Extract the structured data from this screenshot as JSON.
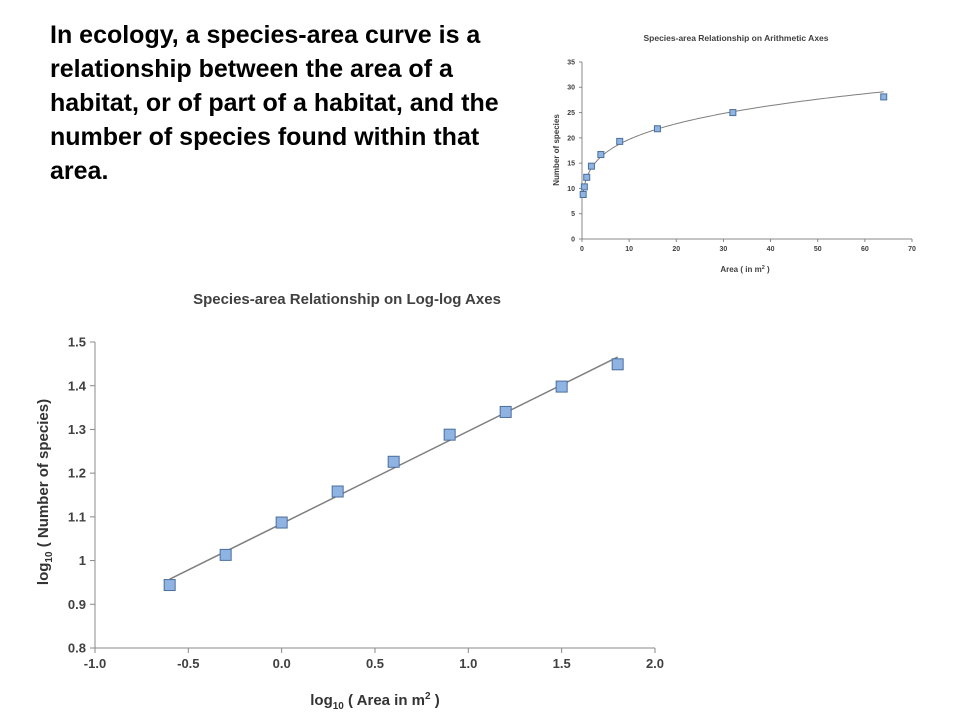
{
  "intro": {
    "text": "In ecology, a species-area curve is a relationship between the area of a habitat, or of part of a habitat, and the number of species found within that area."
  },
  "chart_data": [
    {
      "type": "scatter",
      "title": "Species-area Relationship on Arithmetic Axes",
      "xlabel_prefix": "Area ( in m",
      "xlabel_sup": "2",
      "xlabel_suffix": " )",
      "ylabel": "Number of species",
      "xlim": [
        0,
        70
      ],
      "ylim": [
        0,
        35
      ],
      "xticks": [
        0,
        10,
        20,
        30,
        40,
        50,
        60,
        70
      ],
      "yticks": [
        0,
        5,
        10,
        15,
        20,
        25,
        30,
        35
      ],
      "x": [
        0.25,
        0.5,
        1,
        2,
        4,
        8,
        16,
        32,
        64
      ],
      "y": [
        8.8,
        10.3,
        12.2,
        14.4,
        16.7,
        19.3,
        21.8,
        25.0,
        28.1
      ],
      "fit": "power",
      "marker_color": "#8fb4e3",
      "line_color": "#7f7f7f",
      "grid": false,
      "legend": "none"
    },
    {
      "type": "scatter",
      "title": "Species-area Relationship on Log-log Axes",
      "xlabel_prefix": "log",
      "xlabel_sub": "10",
      "xlabel_mid": " ( Area in m",
      "xlabel_sup": "2",
      "xlabel_suffix": " )",
      "ylabel_prefix": "log",
      "ylabel_sub": "10",
      "ylabel_suffix": " ( Number of species)",
      "xlim": [
        -1.0,
        2.0
      ],
      "ylim": [
        0.8,
        1.5
      ],
      "xticks": [
        "-1.0",
        "-0.5",
        "0.0",
        "0.5",
        "1.0",
        "1.5",
        "2.0"
      ],
      "yticks": [
        "0.8",
        "0.9",
        "1",
        "1.1",
        "1.2",
        "1.3",
        "1.4",
        "1.5"
      ],
      "x": [
        -0.6,
        -0.3,
        0.0,
        0.3,
        0.6,
        0.9,
        1.2,
        1.5,
        1.8
      ],
      "y": [
        0.944,
        1.013,
        1.087,
        1.158,
        1.226,
        1.288,
        1.34,
        1.398,
        1.449
      ],
      "fit": "linear",
      "marker_color": "#8fb4e3",
      "line_color": "#7f7f7f",
      "grid": false,
      "legend": "none"
    }
  ]
}
